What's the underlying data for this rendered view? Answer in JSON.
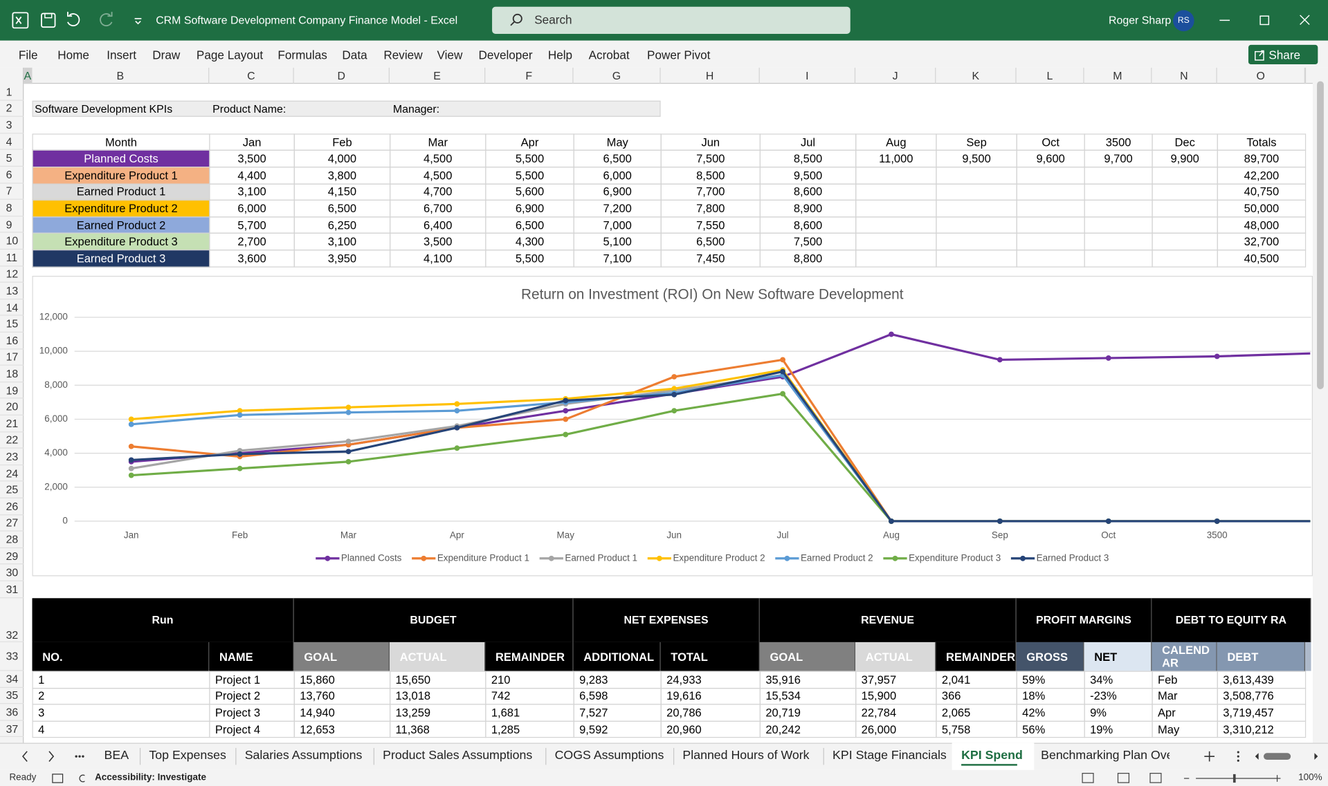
{
  "window": {
    "title": "CRM Software Development Company Finance Model  -  Excel",
    "search": "Search",
    "user": "Roger Sharp",
    "avatar": "RS"
  },
  "ribbon": {
    "tabs": [
      "File",
      "Home",
      "Insert",
      "Draw",
      "Page Layout",
      "Formulas",
      "Data",
      "Review",
      "View",
      "Developer",
      "Help",
      "Acrobat",
      "Power Pivot"
    ],
    "share": "Share"
  },
  "grid": {
    "column_headers": [
      "A",
      "B",
      "C",
      "D",
      "E",
      "F",
      "G",
      "H",
      "I",
      "J",
      "K",
      "L",
      "M",
      "N",
      "O"
    ],
    "row_headers": [
      "1",
      "2",
      "3",
      "4",
      "5",
      "6",
      "7",
      "8",
      "9",
      "10",
      "11",
      "12",
      "13",
      "14",
      "15",
      "16",
      "17",
      "18",
      "19",
      "20",
      "21",
      "22",
      "23",
      "24",
      "25",
      "26",
      "27",
      "28",
      "29",
      "30",
      "31",
      "32",
      "33",
      "34",
      "35",
      "36",
      "37"
    ]
  },
  "sheet": {
    "kpi_title": "Software Development KPIs",
    "product_name": "Product Name:",
    "manager": "Manager:",
    "kpi_table": {
      "header": [
        "Month",
        "Jan",
        "Feb",
        "Mar",
        "Apr",
        "May",
        "Jun",
        "Jul",
        "Aug",
        "Sep",
        "Oct",
        "3500",
        "Dec",
        "Totals"
      ],
      "rows": [
        {
          "label": "Planned Costs",
          "cells": [
            "3,500",
            "4,000",
            "4,500",
            "5,500",
            "6,500",
            "7,500",
            "8,500",
            "11,000",
            "9,500",
            "9,600",
            "9,700",
            "9,900",
            "89,700"
          ]
        },
        {
          "label": "Expenditure Product 1",
          "cells": [
            "4,400",
            "3,800",
            "4,500",
            "5,500",
            "6,000",
            "8,500",
            "9,500",
            null,
            null,
            null,
            null,
            null,
            "42,200"
          ]
        },
        {
          "label": "Earned Product 1",
          "cells": [
            "3,100",
            "4,150",
            "4,700",
            "5,600",
            "6,900",
            "7,700",
            "8,600",
            null,
            null,
            null,
            null,
            null,
            "40,750"
          ]
        },
        {
          "label": "Expenditure Product 2",
          "cells": [
            "6,000",
            "6,500",
            "6,700",
            "6,900",
            "7,200",
            "7,800",
            "8,900",
            null,
            null,
            null,
            null,
            null,
            "50,000"
          ]
        },
        {
          "label": "Earned Product 2",
          "cells": [
            "5,700",
            "6,250",
            "6,400",
            "6,500",
            "7,000",
            "7,550",
            "8,600",
            null,
            null,
            null,
            null,
            null,
            "48,000"
          ]
        },
        {
          "label": "Expenditure Product 3",
          "cells": [
            "2,700",
            "3,100",
            "3,500",
            "4,300",
            "5,100",
            "6,500",
            "7,500",
            null,
            null,
            null,
            null,
            null,
            "32,700"
          ]
        },
        {
          "label": "Earned Product 3",
          "cells": [
            "3,600",
            "3,950",
            "4,100",
            "5,500",
            "7,100",
            "7,450",
            "8,800",
            null,
            null,
            null,
            null,
            null,
            "40,500"
          ]
        }
      ]
    },
    "project_table": {
      "groups": [
        "Run",
        "BUDGET",
        "NET EXPENSES",
        "REVENUE",
        "PROFIT MARGINS",
        "DEBT TO EQUITY RA"
      ],
      "headers": [
        "NO.",
        "NAME",
        "GOAL",
        "ACTUAL",
        "REMAINDER",
        "ADDITIONAL",
        "TOTAL",
        "GOAL",
        "ACTUAL",
        "REMAINDER",
        "GROSS",
        "NET",
        "CALENDAR",
        "DEBT"
      ],
      "rows": [
        [
          "1",
          "Project 1",
          "15,860",
          "15,650",
          "210",
          "9,283",
          "24,933",
          "35,916",
          "37,957",
          "2,041",
          "59%",
          "34%",
          "Feb",
          "3,613,439"
        ],
        [
          "2",
          "Project 2",
          "13,760",
          "13,018",
          "742",
          "6,598",
          "19,616",
          "15,534",
          "15,900",
          "366",
          "18%",
          "-23%",
          "Mar",
          "3,508,776"
        ],
        [
          "3",
          "Project 3",
          "14,940",
          "13,259",
          "1,681",
          "7,527",
          "20,786",
          "20,719",
          "22,784",
          "2,065",
          "42%",
          "9%",
          "Apr",
          "3,719,457"
        ],
        [
          "4",
          "Project 4",
          "12,653",
          "11,368",
          "1,285",
          "9,592",
          "20,960",
          "20,242",
          "26,000",
          "5,758",
          "56%",
          "19%",
          "May",
          "3,310,212"
        ]
      ]
    }
  },
  "chart_data": {
    "type": "line",
    "title": "Return on Investment (ROI) On New Software Development",
    "categories": [
      "Jan",
      "Feb",
      "Mar",
      "Apr",
      "May",
      "Jun",
      "Jul",
      "Aug",
      "Sep",
      "Oct",
      "3500",
      null
    ],
    "series": [
      {
        "name": "Planned Costs",
        "color": "#7030a0",
        "values": [
          3500,
          4000,
          4500,
          5500,
          6500,
          7500,
          8500,
          11000,
          9500,
          9600,
          9700,
          9900
        ]
      },
      {
        "name": "Expenditure Product 1",
        "color": "#ed7d31",
        "values": [
          4400,
          3800,
          4500,
          5500,
          6000,
          8500,
          9500,
          0,
          0,
          0,
          0,
          0
        ]
      },
      {
        "name": "Earned Product 1",
        "color": "#a5a5a5",
        "values": [
          3100,
          4150,
          4700,
          5600,
          6900,
          7700,
          8600,
          0,
          0,
          0,
          0,
          0
        ]
      },
      {
        "name": "Expenditure Product 2",
        "color": "#ffc000",
        "values": [
          6000,
          6500,
          6700,
          6900,
          7200,
          7800,
          8900,
          0,
          0,
          0,
          0,
          0
        ]
      },
      {
        "name": "Earned Product 2",
        "color": "#5b9bd5",
        "values": [
          5700,
          6250,
          6400,
          6500,
          7000,
          7550,
          8600,
          0,
          0,
          0,
          0,
          0
        ]
      },
      {
        "name": "Expenditure Product 3",
        "color": "#70ad47",
        "values": [
          2700,
          3100,
          3500,
          4300,
          5100,
          6500,
          7500,
          0,
          0,
          0,
          0,
          0
        ]
      },
      {
        "name": "Earned Product 3",
        "color": "#264478",
        "values": [
          3600,
          3950,
          4100,
          5500,
          7100,
          7450,
          8800,
          0,
          0,
          0,
          0,
          0
        ]
      }
    ],
    "ylim": [
      0,
      12000
    ],
    "yticks": [
      0,
      {
        "value": 2000,
        "label": "2,000"
      },
      {
        "value": 4000,
        "label": "4,000"
      },
      {
        "value": 6000,
        "label": "6,000"
      },
      {
        "value": 8000,
        "label": "8,000"
      },
      {
        "value": 10000,
        "label": "10,000"
      },
      {
        "value": 12000,
        "label": "12,000"
      }
    ],
    "grid": true,
    "legend": "bottom"
  },
  "sheet_tabs": {
    "tabs": [
      "BEA",
      "Top Expenses",
      "Salaries Assumptions",
      "Product Sales Assumptions",
      "COGS Assumptions",
      "Planned Hours of Work",
      "KPI Stage Financials",
      "KPI Spend",
      "Benchmarking Plan Ove"
    ],
    "active": 7
  },
  "status_bar": {
    "mode": "Ready",
    "accessibility": "Accessibility: Investigate",
    "zoom": "100%"
  }
}
